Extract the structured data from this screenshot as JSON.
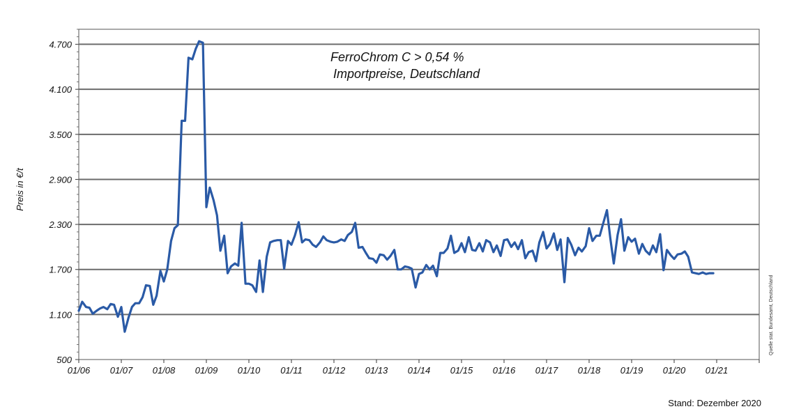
{
  "chart_data": {
    "type": "line",
    "title": [
      "FerroChrom C > 0,54 %",
      "Importpreise, Deutschland"
    ],
    "ylabel": "Preis in €/t",
    "source_note": "Quelle stat. Bundesamt, Deutschland",
    "stand": "Stand: Dezember 2020",
    "ylim": [
      500,
      4900
    ],
    "yticks": [
      {
        "value": 500,
        "label": "500"
      },
      {
        "value": 1100,
        "label": "1.100"
      },
      {
        "value": 1700,
        "label": "1.700"
      },
      {
        "value": 2300,
        "label": "2.300"
      },
      {
        "value": 2900,
        "label": "2.900"
      },
      {
        "value": 3500,
        "label": "3.500"
      },
      {
        "value": 4100,
        "label": "4.100"
      },
      {
        "value": 4700,
        "label": "4.700"
      }
    ],
    "xlim": [
      2006.0,
      2022.0
    ],
    "xticks": [
      {
        "value": 2006,
        "label": "01/06"
      },
      {
        "value": 2007,
        "label": "01/07"
      },
      {
        "value": 2008,
        "label": "01/08"
      },
      {
        "value": 2009,
        "label": "01/09"
      },
      {
        "value": 2010,
        "label": "01/10"
      },
      {
        "value": 2011,
        "label": "01/11"
      },
      {
        "value": 2012,
        "label": "01/12"
      },
      {
        "value": 2013,
        "label": "01/13"
      },
      {
        "value": 2014,
        "label": "01/14"
      },
      {
        "value": 2015,
        "label": "01/15"
      },
      {
        "value": 2016,
        "label": "01/16"
      },
      {
        "value": 2017,
        "label": "01/17"
      },
      {
        "value": 2018,
        "label": "01/18"
      },
      {
        "value": 2019,
        "label": "01/19"
      },
      {
        "value": 2020,
        "label": "01/20"
      },
      {
        "value": 2021,
        "label": "01/21"
      }
    ],
    "grid": "horizontal",
    "colors": {
      "line": "#2a5aa6",
      "grid": "#6b6b6b",
      "frame": "#555555"
    },
    "series": [
      {
        "x": [
          2006.0,
          2006.08,
          2006.17,
          2006.25,
          2006.33,
          2006.42,
          2006.5,
          2006.58,
          2006.67,
          2006.75,
          2006.83,
          2006.92,
          2007.0,
          2007.08,
          2007.17,
          2007.25,
          2007.33,
          2007.42,
          2007.5,
          2007.58,
          2007.67,
          2007.75,
          2007.83,
          2007.92,
          2008.0,
          2008.08,
          2008.17,
          2008.25,
          2008.33,
          2008.42,
          2008.5,
          2008.58,
          2008.67,
          2008.75,
          2008.83,
          2008.92,
          2009.0,
          2009.08,
          2009.17,
          2009.25,
          2009.33,
          2009.42,
          2009.5,
          2009.58,
          2009.67,
          2009.75,
          2009.83,
          2009.92,
          2010.0,
          2010.08,
          2010.17,
          2010.25,
          2010.33,
          2010.42,
          2010.5,
          2010.58,
          2010.67,
          2010.75,
          2010.83,
          2010.92,
          2011.0,
          2011.08,
          2011.17,
          2011.25,
          2011.33,
          2011.42,
          2011.5,
          2011.58,
          2011.67,
          2011.75,
          2011.83,
          2011.92,
          2012.0,
          2012.08,
          2012.17,
          2012.25,
          2012.33,
          2012.42,
          2012.5,
          2012.58,
          2012.67,
          2012.75,
          2012.83,
          2012.92,
          2013.0,
          2013.08,
          2013.17,
          2013.25,
          2013.33,
          2013.42,
          2013.5,
          2013.58,
          2013.67,
          2013.75,
          2013.83,
          2013.92,
          2014.0,
          2014.08,
          2014.17,
          2014.25,
          2014.33,
          2014.42,
          2014.5,
          2014.58,
          2014.67,
          2014.75,
          2014.83,
          2014.92,
          2015.0,
          2015.08,
          2015.17,
          2015.25,
          2015.33,
          2015.42,
          2015.5,
          2015.58,
          2015.67,
          2015.75,
          2015.83,
          2015.92,
          2016.0,
          2016.08,
          2016.17,
          2016.25,
          2016.33,
          2016.42,
          2016.5,
          2016.58,
          2016.67,
          2016.75,
          2016.83,
          2016.92,
          2017.0,
          2017.08,
          2017.17,
          2017.25,
          2017.33,
          2017.42,
          2017.5,
          2017.58,
          2017.67,
          2017.75,
          2017.83,
          2017.92,
          2018.0,
          2018.08,
          2018.17,
          2018.25,
          2018.33,
          2018.42,
          2018.5,
          2018.58,
          2018.67,
          2018.75,
          2018.83,
          2018.92,
          2019.0,
          2019.08,
          2019.17,
          2019.25,
          2019.33,
          2019.42,
          2019.5,
          2019.58,
          2019.67,
          2019.75,
          2019.83,
          2019.92,
          2020.0,
          2020.08,
          2020.17,
          2020.25,
          2020.33,
          2020.42,
          2020.5,
          2020.58,
          2020.67,
          2020.75,
          2020.83,
          2020.92
        ],
        "y": [
          1150,
          1270,
          1200,
          1190,
          1110,
          1150,
          1180,
          1200,
          1170,
          1240,
          1230,
          1070,
          1200,
          870,
          1060,
          1200,
          1250,
          1250,
          1330,
          1490,
          1480,
          1230,
          1350,
          1680,
          1540,
          1700,
          2080,
          2250,
          2290,
          3680,
          3680,
          4520,
          4500,
          4640,
          4740,
          4720,
          2530,
          2790,
          2620,
          2420,
          1950,
          2150,
          1650,
          1740,
          1780,
          1750,
          2320,
          1510,
          1510,
          1490,
          1400,
          1820,
          1400,
          1870,
          2060,
          2080,
          2090,
          2090,
          1710,
          2080,
          2030,
          2150,
          2330,
          2060,
          2100,
          2090,
          2030,
          2000,
          2060,
          2140,
          2090,
          2070,
          2060,
          2070,
          2100,
          2080,
          2160,
          2200,
          2320,
          1990,
          2000,
          1920,
          1850,
          1840,
          1790,
          1900,
          1890,
          1830,
          1880,
          1960,
          1700,
          1700,
          1740,
          1730,
          1710,
          1460,
          1640,
          1660,
          1760,
          1700,
          1750,
          1610,
          1920,
          1920,
          1980,
          2150,
          1920,
          1950,
          2050,
          1930,
          2130,
          1960,
          1950,
          2050,
          1940,
          2090,
          2060,
          1930,
          2020,
          1880,
          2090,
          2100,
          2000,
          2060,
          1970,
          2090,
          1850,
          1930,
          1950,
          1810,
          2060,
          2200,
          1980,
          2040,
          2180,
          1960,
          2100,
          1530,
          2120,
          2030,
          1890,
          1990,
          1940,
          2010,
          2250,
          2080,
          2150,
          2150,
          2310,
          2490,
          2110,
          1780,
          2160,
          2370,
          1950,
          2130,
          2070,
          2110,
          1910,
          2040,
          1950,
          1900,
          2020,
          1930,
          2170,
          1690,
          1960,
          1890,
          1840,
          1900,
          1910,
          1940,
          1870,
          1660,
          1650,
          1640,
          1660,
          1640,
          1650,
          1650
        ]
      }
    ]
  }
}
